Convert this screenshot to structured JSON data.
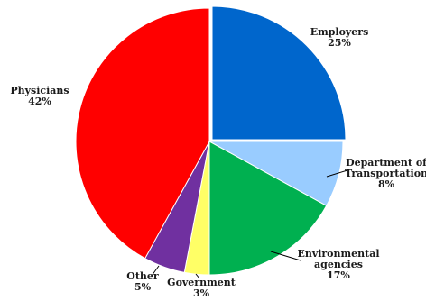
{
  "chart_data": {
    "type": "pie",
    "title": "",
    "slices": [
      {
        "name": "Employers",
        "label_lines": [
          "Employers"
        ],
        "value": 25,
        "value_label": "25%",
        "color": "#0066CC"
      },
      {
        "name": "Department of Transportation",
        "label_lines": [
          "Department of",
          "Transportation"
        ],
        "value": 8,
        "value_label": "8%",
        "color": "#99CCFF"
      },
      {
        "name": "Environmental agencies",
        "label_lines": [
          "Environmental",
          "agencies"
        ],
        "value": 17,
        "value_label": "17%",
        "color": "#00B050"
      },
      {
        "name": "Government",
        "label_lines": [
          "Government"
        ],
        "value": 3,
        "value_label": "3%",
        "color": "#FFFF66"
      },
      {
        "name": "Other",
        "label_lines": [
          "Other"
        ],
        "value": 5,
        "value_label": "5%",
        "color": "#7030A0"
      },
      {
        "name": "Physicians",
        "label_lines": [
          "Physicians"
        ],
        "value": 42,
        "value_label": "42%",
        "color": "#FF0000"
      }
    ],
    "legend": "none"
  }
}
